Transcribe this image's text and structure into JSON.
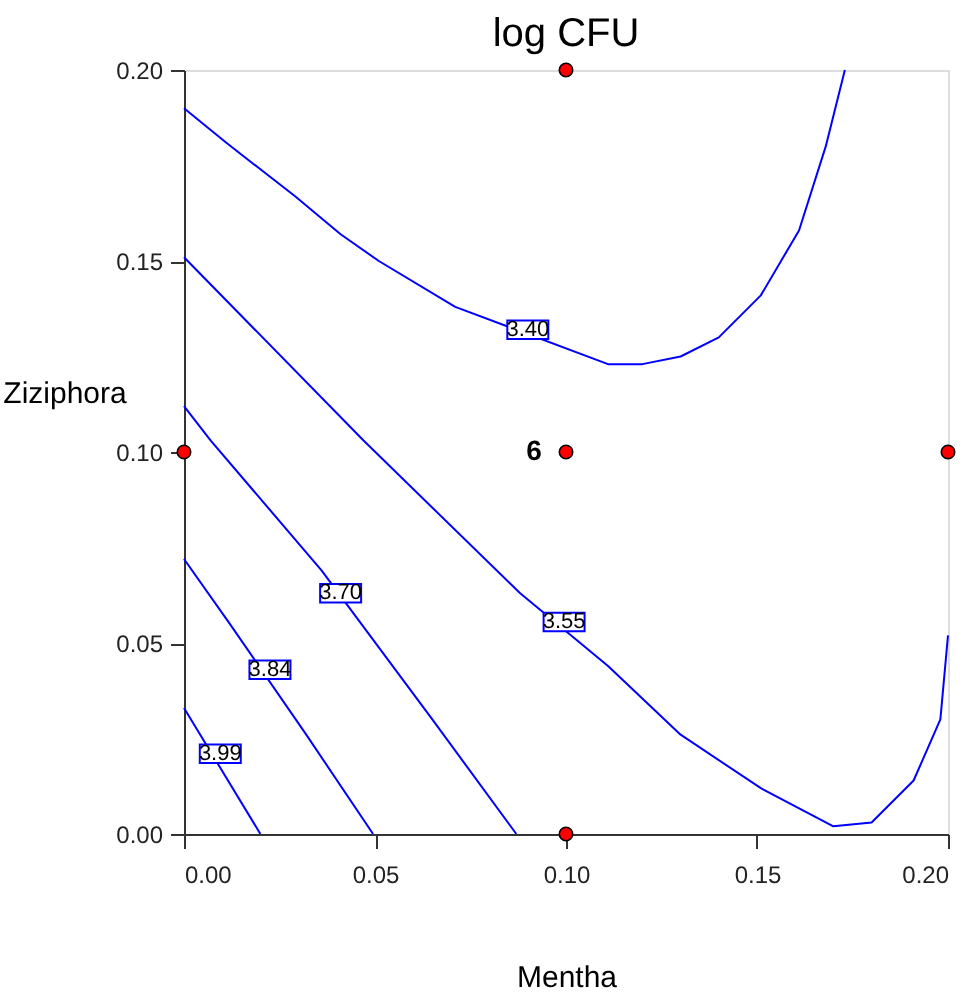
{
  "chart_data": {
    "type": "line",
    "title": "log CFU",
    "xlabel": "Mentha",
    "ylabel": "Ziziphora",
    "xlim": [
      0,
      0.2
    ],
    "ylim": [
      0,
      0.2
    ],
    "xticks": [
      {
        "value": 0,
        "label": "0.00"
      },
      {
        "value": 0.05,
        "label": "0.05"
      },
      {
        "value": 0.1,
        "label": "0.10"
      },
      {
        "value": 0.15,
        "label": "0.15"
      },
      {
        "value": 0.2,
        "label": "0.20"
      }
    ],
    "yticks": [
      {
        "value": 0,
        "label": "0.00"
      },
      {
        "value": 0.05,
        "label": "0.05"
      },
      {
        "value": 0.1,
        "label": "0.10"
      },
      {
        "value": 0.15,
        "label": "0.15"
      },
      {
        "value": 0.2,
        "label": "0.20"
      }
    ],
    "grid": false,
    "series": [
      {
        "color": "#0000ff",
        "x": [
          0,
          0.011,
          0.029,
          0.041,
          0.051,
          0.071,
          0.111,
          0.12,
          0.13,
          0.14,
          0.151,
          0.161,
          0.168,
          0.173
        ],
        "values": [
          0.19,
          0.181,
          0.167,
          0.157,
          0.15,
          0.138,
          0.123,
          0.123,
          0.125,
          0.13,
          0.141,
          0.158,
          0.18,
          0.2
        ]
      },
      {
        "color": "#0000ff",
        "x": [
          0,
          0.047,
          0.088,
          0.111,
          0.13,
          0.151,
          0.17,
          0.18,
          0.191,
          0.198,
          0.2
        ],
        "values": [
          0.151,
          0.103,
          0.063,
          0.044,
          0.026,
          0.012,
          0.002,
          0.003,
          0.014,
          0.03,
          0.052
        ]
      },
      {
        "color": "#0000ff",
        "x": [
          0,
          0.007,
          0.036,
          0.065,
          0.087
        ],
        "values": [
          0.112,
          0.103,
          0.069,
          0.03,
          0
        ]
      },
      {
        "color": "#0000ff",
        "x": [
          0,
          0.012,
          0.032,
          0.0495
        ],
        "values": [
          0.072,
          0.055,
          0.026,
          0
        ]
      },
      {
        "color": "#0000ff",
        "x": [
          0,
          0.02
        ],
        "values": [
          0.033,
          0
        ]
      },
      {
        "type": "scatter",
        "color": "#ff0000",
        "marker": "circle",
        "x": [
          0.1,
          0,
          0.1,
          0.2,
          0.1
        ],
        "values": [
          0.2,
          0.1,
          0.1,
          0.1,
          0
        ]
      }
    ],
    "annotations": [
      {
        "text": "6",
        "x": 0.1,
        "y": 0.1
      },
      {
        "text": "3.40",
        "x": 0.09,
        "y": 0.132
      },
      {
        "text": "3.55",
        "x": 0.0995,
        "y": 0.0555
      },
      {
        "text": "3.70",
        "x": 0.041,
        "y": 0.063
      },
      {
        "text": "3.84",
        "x": 0.0225,
        "y": 0.043
      },
      {
        "text": "3.99",
        "x": 0.0095,
        "y": 0.021
      }
    ]
  }
}
